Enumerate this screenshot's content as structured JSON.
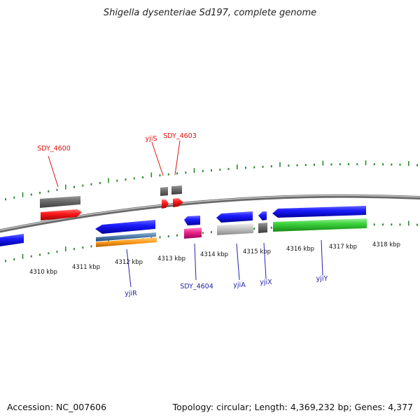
{
  "title": "Shigella dysenteriae Sd197, complete genome",
  "footer": {
    "accession": "Accession: NC_007606",
    "summary": "Topology: circular; Length: 4,369,232 bp; Genes: 4,377"
  },
  "colors": {
    "backbone": "#909090",
    "tick_green": "#2e8b2e",
    "label_red": "#dd1111",
    "label_blue": "#2222aa"
  },
  "scale": {
    "ticks": [
      {
        "label": "4310 kbp"
      },
      {
        "label": "4311 kbp"
      },
      {
        "label": "4312 kbp"
      },
      {
        "label": "4313 kbp"
      },
      {
        "label": "4314 kbp"
      },
      {
        "label": "4315 kbp"
      },
      {
        "label": "4316 kbp"
      },
      {
        "label": "4317 kbp"
      },
      {
        "label": "4318 kbp"
      }
    ]
  },
  "gene_labels": {
    "top": [
      {
        "name": "SDY_4600"
      },
      {
        "name": "yjiS"
      },
      {
        "name": "SDY_4603"
      }
    ],
    "bottom": [
      {
        "name": "yjiR"
      },
      {
        "name": "SDY_4604"
      },
      {
        "name": "yjiA"
      },
      {
        "name": "yjiX"
      },
      {
        "name": "yjiY"
      }
    ]
  }
}
